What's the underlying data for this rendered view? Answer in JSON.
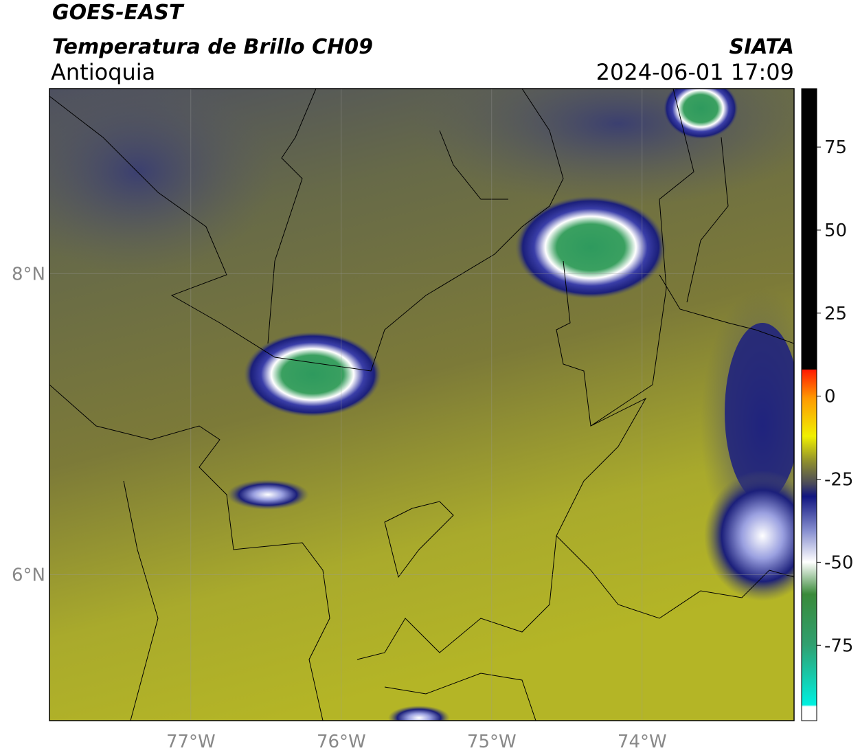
{
  "header": {
    "title": "GOES-EAST",
    "subtitle": "Temperatura de Brillo CH09",
    "region": "Antioquia",
    "source": "SIATA",
    "datetime": "2024-06-01 17:09"
  },
  "map": {
    "lonlim": [
      -77.94,
      -72.99
    ],
    "latlim": [
      5.03,
      9.23
    ],
    "xticks": [
      {
        "value": -77,
        "label": "77°W"
      },
      {
        "value": -76,
        "label": "76°W"
      },
      {
        "value": -75,
        "label": "75°W"
      },
      {
        "value": -74,
        "label": "74°W"
      }
    ],
    "yticks": [
      {
        "value": 8,
        "label": "8°N"
      },
      {
        "value": 6,
        "label": "6°N"
      }
    ]
  },
  "colorbar": {
    "lim": [
      -97.7,
      92.6
    ],
    "ticks": [
      75,
      50,
      25,
      0,
      -25,
      -50,
      -75
    ]
  }
}
